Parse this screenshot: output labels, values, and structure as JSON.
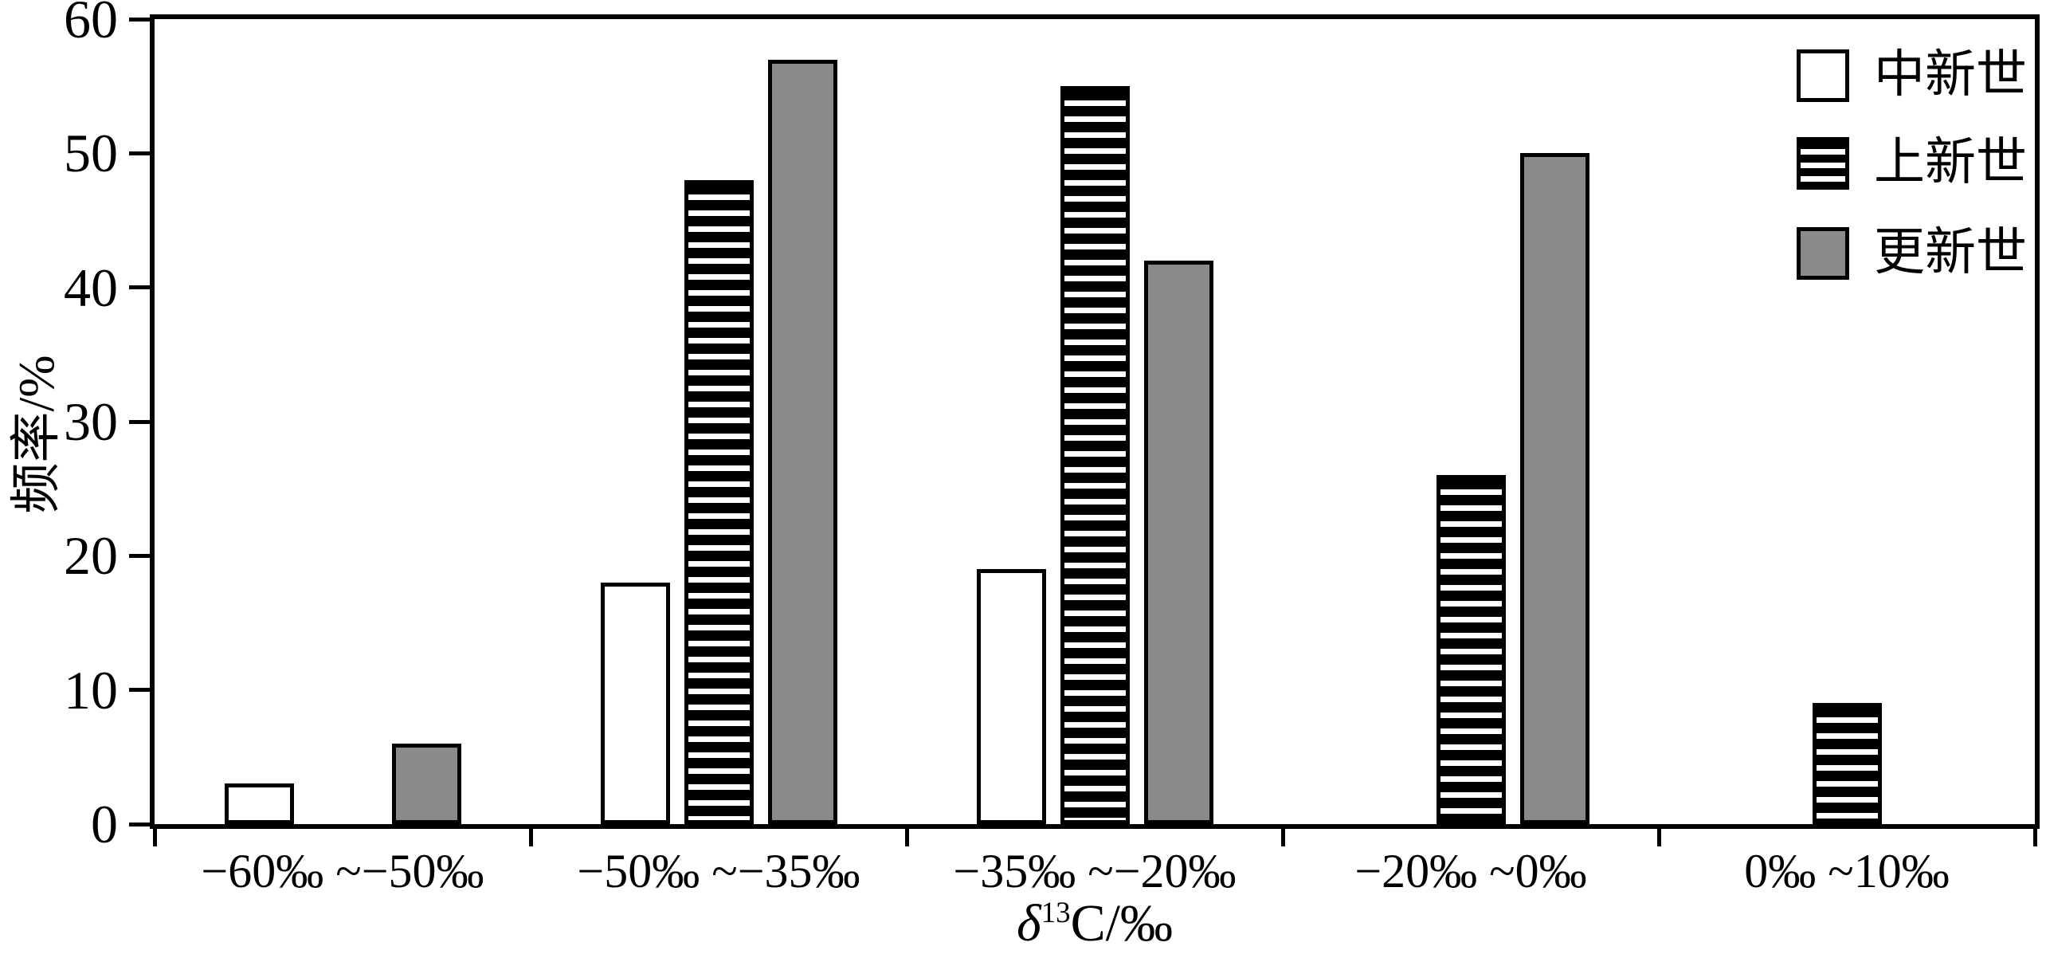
{
  "chart_data": {
    "type": "bar",
    "title": "",
    "categories": [
      "−60‰ ~−50‰",
      "−50‰ ~−35‰",
      "−35‰ ~−20‰",
      "−20‰ ~0‰",
      "0‰ ~10‰"
    ],
    "series": [
      {
        "name": "中新世",
        "style": "white",
        "values": [
          3,
          18,
          19,
          0,
          0
        ]
      },
      {
        "name": "上新世",
        "style": "striped",
        "values": [
          0,
          48,
          55,
          26,
          9
        ]
      },
      {
        "name": "更新世",
        "style": "gray",
        "values": [
          6,
          57,
          42,
          50,
          0
        ]
      }
    ],
    "xlabel_delta": "δ",
    "xlabel_sup": "13",
    "xlabel_rest": "C/‰",
    "ylabel": "频率/%",
    "ylim": [
      0,
      60
    ],
    "yticks": [
      0,
      10,
      20,
      30,
      40,
      50,
      60
    ],
    "legend_position": "top-right-inside",
    "grid": false
  },
  "colors": {
    "bar_gray": "#8a8a8a",
    "outline": "#000000",
    "background": "#ffffff"
  }
}
